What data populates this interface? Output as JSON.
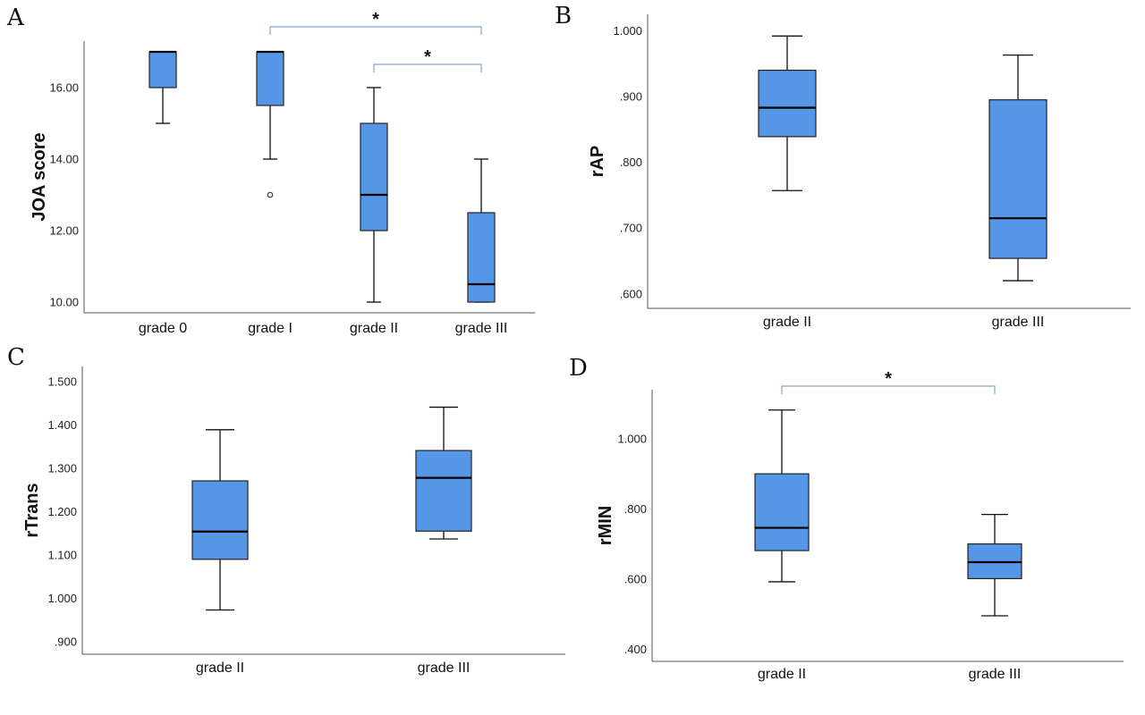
{
  "colors": {
    "box_fill": "#5596E6",
    "bracket": "#7FA8D8",
    "axis": "#555555",
    "line": "#111111"
  },
  "chart_data": [
    {
      "panel": "A",
      "type": "boxplot",
      "ylabel": "JOA score",
      "ylim": [
        9.7,
        17.3
      ],
      "yticks": [
        10,
        12,
        14,
        16
      ],
      "tick_labels": [
        "10.00",
        "12.00",
        "14.00",
        "16.00"
      ],
      "categories": [
        "grade 0",
        "grade I",
        "grade II",
        "grade III"
      ],
      "boxes": [
        {
          "min": 15,
          "q1": 16,
          "median": 17,
          "q3": 17,
          "max": 17,
          "outliers": []
        },
        {
          "min": 14,
          "q1": 15.5,
          "median": 17,
          "q3": 17,
          "max": 17,
          "outliers": [
            13
          ]
        },
        {
          "min": 10,
          "q1": 12,
          "median": 13,
          "q3": 15,
          "max": 16,
          "outliers": []
        },
        {
          "min": 10,
          "q1": 10,
          "median": 10.5,
          "q3": 12.5,
          "max": 14,
          "outliers": []
        }
      ],
      "significance": [
        {
          "from": 1,
          "to": 3,
          "label": "*"
        },
        {
          "from": 2,
          "to": 3,
          "label": "*"
        }
      ]
    },
    {
      "panel": "B",
      "type": "boxplot",
      "ylabel": "rAP",
      "ylim": [
        0.578,
        1.025
      ],
      "yticks": [
        0.6,
        0.7,
        0.8,
        0.9,
        1.0
      ],
      "tick_labels": [
        ".600",
        ".700",
        ".800",
        ".900",
        "1.000"
      ],
      "categories": [
        "grade II",
        "grade III"
      ],
      "boxes": [
        {
          "min": 0.757,
          "q1": 0.839,
          "median": 0.883,
          "q3": 0.94,
          "max": 0.992,
          "outliers": []
        },
        {
          "min": 0.62,
          "q1": 0.654,
          "median": 0.715,
          "q3": 0.895,
          "max": 0.963,
          "outliers": []
        }
      ],
      "significance": []
    },
    {
      "panel": "C",
      "type": "boxplot",
      "ylabel": "rTrans",
      "ylim": [
        0.871,
        1.535
      ],
      "yticks": [
        0.9,
        1.0,
        1.1,
        1.2,
        1.3,
        1.4,
        1.5
      ],
      "tick_labels": [
        ".900",
        "1.000",
        "1.100",
        "1.200",
        "1.300",
        "1.400",
        "1.500"
      ],
      "categories": [
        "grade II",
        "grade III"
      ],
      "boxes": [
        {
          "min": 0.973,
          "q1": 1.09,
          "median": 1.154,
          "q3": 1.271,
          "max": 1.389,
          "outliers": []
        },
        {
          "min": 1.137,
          "q1": 1.155,
          "median": 1.278,
          "q3": 1.341,
          "max": 1.441,
          "outliers": []
        }
      ],
      "significance": []
    },
    {
      "panel": "D",
      "type": "boxplot",
      "ylabel": "rMIN",
      "ylim": [
        0.365,
        1.14
      ],
      "yticks": [
        0.4,
        0.6,
        0.8,
        1.0
      ],
      "tick_labels": [
        ".400",
        ".600",
        ".800",
        "1.000"
      ],
      "categories": [
        "grade II",
        "grade III"
      ],
      "boxes": [
        {
          "min": 0.592,
          "q1": 0.681,
          "median": 0.746,
          "q3": 0.9,
          "max": 1.082,
          "outliers": []
        },
        {
          "min": 0.495,
          "q1": 0.601,
          "median": 0.648,
          "q3": 0.7,
          "max": 0.784,
          "outliers": []
        }
      ],
      "significance": [
        {
          "from": 0,
          "to": 1,
          "label": "*"
        }
      ]
    }
  ]
}
